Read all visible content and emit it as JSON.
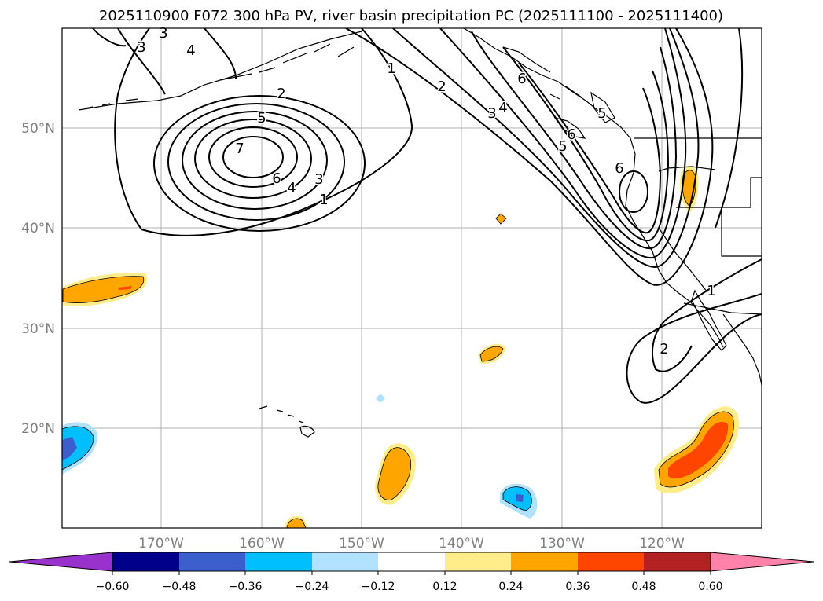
{
  "title": "2025110900 F072 300 hPa PV, river basin precipitation PC (2025111100 - 2025111400)",
  "axes": {
    "lat_labels": [
      "50°N",
      "40°N",
      "30°N",
      "20°N"
    ],
    "lon_labels": [
      "170°W",
      "160°W",
      "150°W",
      "140°W",
      "130°W",
      "120°W"
    ]
  },
  "colorbar": {
    "ticks": [
      "−0.60",
      "−0.48",
      "−0.36",
      "−0.24",
      "−0.12",
      "0.12",
      "0.24",
      "0.36",
      "0.48",
      "0.60"
    ],
    "colors": [
      "#9932cc",
      "#00008b",
      "#3a5fcd",
      "#00bfff",
      "#b0e2ff",
      "#ffffff",
      "#ffec8b",
      "#ffa500",
      "#ff4500",
      "#b22222",
      "#ff82ab"
    ]
  },
  "pv_contour_labels": [
    "3",
    "4",
    "3",
    "2",
    "5",
    "7",
    "6",
    "4",
    "3",
    "1",
    "1",
    "2",
    "3",
    "4",
    "6",
    "5",
    "6",
    "5",
    "6",
    "1",
    "2"
  ]
}
